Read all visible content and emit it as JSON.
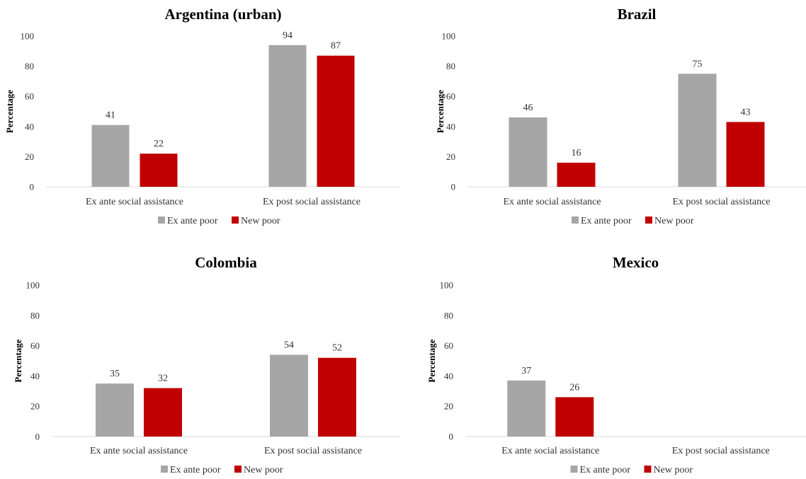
{
  "chart_data": [
    {
      "type": "bar",
      "title": "Argentina (urban)",
      "ylabel": "Percentage",
      "ylim": [
        0,
        100
      ],
      "yticks": [
        0,
        20,
        40,
        60,
        80,
        100
      ],
      "categories": [
        "Ex ante social assistance",
        "Ex post social assistance"
      ],
      "series": [
        {
          "name": "Ex ante poor",
          "values": [
            41,
            94
          ],
          "labels": [
            "41",
            "94"
          ]
        },
        {
          "name": "New poor",
          "values": [
            22,
            87
          ],
          "labels": [
            "22",
            "87"
          ]
        }
      ],
      "legend": "bottom"
    },
    {
      "type": "bar",
      "title": "Brazil",
      "ylabel": "Percentage",
      "ylim": [
        0,
        100
      ],
      "yticks": [
        0,
        20,
        40,
        60,
        80,
        100
      ],
      "categories": [
        "Ex ante social assistance",
        "Ex post social assistance"
      ],
      "series": [
        {
          "name": "Ex ante poor",
          "values": [
            46,
            75
          ],
          "labels": [
            "46",
            "75"
          ]
        },
        {
          "name": "New poor",
          "values": [
            16,
            43
          ],
          "labels": [
            "16",
            "43"
          ]
        }
      ],
      "legend": "bottom"
    },
    {
      "type": "bar",
      "title": "Colombia",
      "ylabel": "Percentage",
      "ylim": [
        0,
        100
      ],
      "yticks": [
        0,
        20,
        40,
        60,
        80,
        100
      ],
      "categories": [
        "Ex ante social assistance",
        "Ex post social assistance"
      ],
      "series": [
        {
          "name": "Ex ante poor",
          "values": [
            35,
            54
          ],
          "labels": [
            "35",
            "54"
          ]
        },
        {
          "name": "New poor",
          "values": [
            32,
            52
          ],
          "labels": [
            "32",
            "52"
          ]
        }
      ],
      "legend": "bottom"
    },
    {
      "type": "bar",
      "title": "Mexico",
      "ylabel": "Percentage",
      "ylim": [
        0,
        100
      ],
      "yticks": [
        0,
        20,
        40,
        60,
        80,
        100
      ],
      "categories": [
        "Ex ante social assistance",
        "Ex post social assistance"
      ],
      "series": [
        {
          "name": "Ex ante poor",
          "values": [
            37,
            null
          ],
          "labels": [
            "37",
            ""
          ]
        },
        {
          "name": "New poor",
          "values": [
            26,
            null
          ],
          "labels": [
            "26",
            ""
          ]
        }
      ],
      "legend": "bottom"
    }
  ],
  "colors": {
    "Ex ante poor": "#a6a6a6",
    "New poor": "#c00000",
    "axis": "#d9d9d9"
  }
}
